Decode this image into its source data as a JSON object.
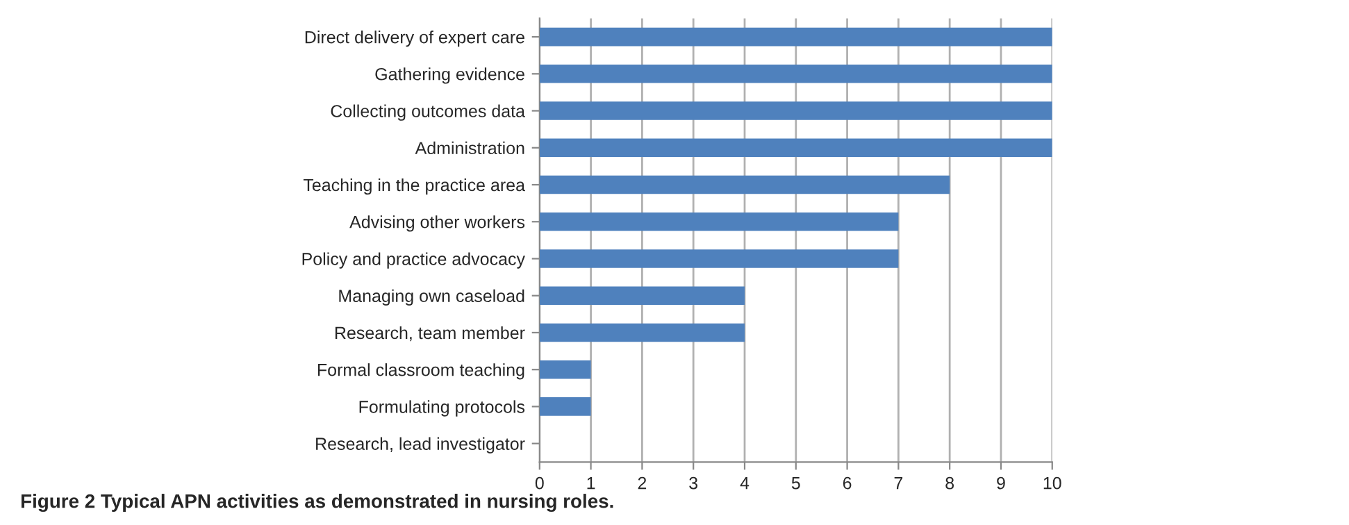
{
  "chart_data": {
    "type": "bar",
    "orientation": "horizontal",
    "categories": [
      "Direct delivery of expert care",
      "Gathering evidence",
      "Collecting outcomes data",
      "Administration",
      "Teaching in the practice area",
      "Advising other workers",
      "Policy and practice advocacy",
      "Managing own caseload",
      "Research, team member",
      "Formal classroom teaching",
      "Formulating protocols",
      "Research, lead investigator"
    ],
    "values": [
      10,
      10,
      10,
      10,
      8,
      7,
      7,
      4,
      4,
      1,
      1,
      0
    ],
    "color": "#4f81bd",
    "xlim": [
      0,
      10
    ],
    "xticks": [
      0,
      1,
      2,
      3,
      4,
      5,
      6,
      7,
      8,
      9,
      10
    ],
    "grid": "x",
    "legend": false,
    "annotations": [
      "Figure 2 Typical APN activities as demonstrated in nursing roles."
    ]
  }
}
